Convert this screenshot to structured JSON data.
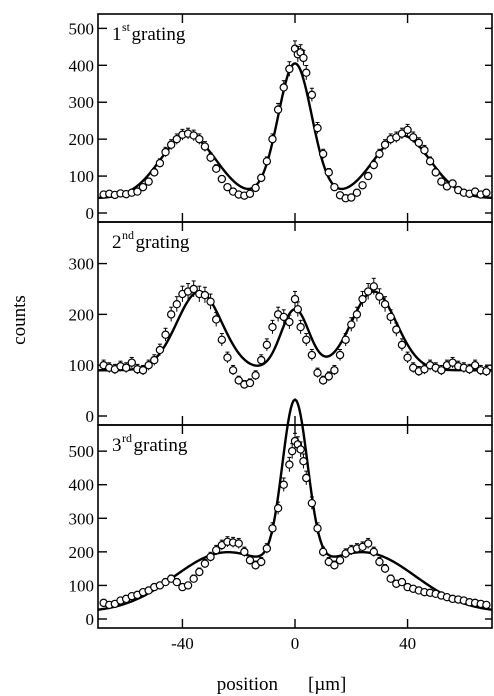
{
  "chart_data": {
    "type": "scatter",
    "xlabel": "position",
    "xunit": "[µm]",
    "ylabel": "counts",
    "xlim": [
      -70,
      70
    ],
    "xticks": [
      -40,
      0,
      40
    ],
    "panels": [
      {
        "title_main": "1",
        "title_sup": "st",
        "title_rest": " grating",
        "ylim": [
          0,
          520
        ],
        "yticks": [
          0,
          100,
          200,
          300,
          400,
          500
        ],
        "fit": {
          "baseline": 40,
          "peaks": [
            {
              "center": -38,
              "amplitude": 170,
              "width": 10
            },
            {
              "center": 0,
              "amplitude": 365,
              "width": 6
            },
            {
              "center": 38,
              "amplitude": 170,
              "width": 10
            }
          ]
        },
        "points": [
          {
            "x": -68,
            "y": 50
          },
          {
            "x": -66,
            "y": 52
          },
          {
            "x": -64,
            "y": 49
          },
          {
            "x": -62,
            "y": 53
          },
          {
            "x": -60,
            "y": 51
          },
          {
            "x": -58,
            "y": 55
          },
          {
            "x": -56,
            "y": 58
          },
          {
            "x": -54,
            "y": 70
          },
          {
            "x": -52,
            "y": 85
          },
          {
            "x": -50,
            "y": 110
          },
          {
            "x": -48,
            "y": 135
          },
          {
            "x": -46,
            "y": 165
          },
          {
            "x": -44,
            "y": 185
          },
          {
            "x": -42,
            "y": 200
          },
          {
            "x": -40,
            "y": 212
          },
          {
            "x": -38,
            "y": 215
          },
          {
            "x": -36,
            "y": 210
          },
          {
            "x": -34,
            "y": 200
          },
          {
            "x": -32,
            "y": 180
          },
          {
            "x": -30,
            "y": 150
          },
          {
            "x": -28,
            "y": 120
          },
          {
            "x": -26,
            "y": 92
          },
          {
            "x": -24,
            "y": 70
          },
          {
            "x": -22,
            "y": 58
          },
          {
            "x": -20,
            "y": 50
          },
          {
            "x": -18,
            "y": 47
          },
          {
            "x": -16,
            "y": 52
          },
          {
            "x": -14,
            "y": 68
          },
          {
            "x": -12,
            "y": 95
          },
          {
            "x": -10,
            "y": 140
          },
          {
            "x": -8,
            "y": 200
          },
          {
            "x": -6,
            "y": 280
          },
          {
            "x": -4,
            "y": 340
          },
          {
            "x": -2,
            "y": 390
          },
          {
            "x": 0,
            "y": 445
          },
          {
            "x": 1,
            "y": 430
          },
          {
            "x": 2,
            "y": 435
          },
          {
            "x": 3,
            "y": 420
          },
          {
            "x": 4,
            "y": 380
          },
          {
            "x": 6,
            "y": 320
          },
          {
            "x": 8,
            "y": 230
          },
          {
            "x": 10,
            "y": 160
          },
          {
            "x": 12,
            "y": 110
          },
          {
            "x": 14,
            "y": 70
          },
          {
            "x": 16,
            "y": 48
          },
          {
            "x": 18,
            "y": 40
          },
          {
            "x": 20,
            "y": 42
          },
          {
            "x": 22,
            "y": 55
          },
          {
            "x": 24,
            "y": 75
          },
          {
            "x": 26,
            "y": 100
          },
          {
            "x": 28,
            "y": 130
          },
          {
            "x": 30,
            "y": 160
          },
          {
            "x": 32,
            "y": 185
          },
          {
            "x": 34,
            "y": 200
          },
          {
            "x": 36,
            "y": 205
          },
          {
            "x": 38,
            "y": 215
          },
          {
            "x": 40,
            "y": 225
          },
          {
            "x": 42,
            "y": 205
          },
          {
            "x": 44,
            "y": 190
          },
          {
            "x": 46,
            "y": 170
          },
          {
            "x": 48,
            "y": 140
          },
          {
            "x": 50,
            "y": 110
          },
          {
            "x": 52,
            "y": 85
          },
          {
            "x": 54,
            "y": 72
          },
          {
            "x": 56,
            "y": 80
          },
          {
            "x": 58,
            "y": 62
          },
          {
            "x": 60,
            "y": 55
          },
          {
            "x": 62,
            "y": 52
          },
          {
            "x": 64,
            "y": 58
          },
          {
            "x": 66,
            "y": 50
          },
          {
            "x": 68,
            "y": 55
          }
        ]
      },
      {
        "title_main": "2",
        "title_sup": "nd",
        "title_rest": " grating",
        "ylim": [
          0,
          370
        ],
        "yticks": [
          0,
          100,
          200,
          300
        ],
        "fit": {
          "baseline": 90,
          "peaks": [
            {
              "center": -34,
              "amplitude": 155,
              "width": 8
            },
            {
              "center": 0,
              "amplitude": 120,
              "width": 5
            },
            {
              "center": 28,
              "amplitude": 155,
              "width": 8
            }
          ]
        },
        "points": [
          {
            "x": -68,
            "y": 100
          },
          {
            "x": -66,
            "y": 95
          },
          {
            "x": -64,
            "y": 92
          },
          {
            "x": -62,
            "y": 98
          },
          {
            "x": -60,
            "y": 95
          },
          {
            "x": -58,
            "y": 105
          },
          {
            "x": -56,
            "y": 92
          },
          {
            "x": -54,
            "y": 90
          },
          {
            "x": -52,
            "y": 100
          },
          {
            "x": -50,
            "y": 110
          },
          {
            "x": -48,
            "y": 130
          },
          {
            "x": -46,
            "y": 160
          },
          {
            "x": -44,
            "y": 200
          },
          {
            "x": -42,
            "y": 220
          },
          {
            "x": -40,
            "y": 240
          },
          {
            "x": -38,
            "y": 245
          },
          {
            "x": -36,
            "y": 250
          },
          {
            "x": -34,
            "y": 240
          },
          {
            "x": -32,
            "y": 238
          },
          {
            "x": -30,
            "y": 225
          },
          {
            "x": -28,
            "y": 190
          },
          {
            "x": -26,
            "y": 150
          },
          {
            "x": -24,
            "y": 115
          },
          {
            "x": -22,
            "y": 90
          },
          {
            "x": -20,
            "y": 70
          },
          {
            "x": -18,
            "y": 62
          },
          {
            "x": -16,
            "y": 65
          },
          {
            "x": -14,
            "y": 80
          },
          {
            "x": -12,
            "y": 110
          },
          {
            "x": -10,
            "y": 140
          },
          {
            "x": -8,
            "y": 175
          },
          {
            "x": -6,
            "y": 200
          },
          {
            "x": -4,
            "y": 195
          },
          {
            "x": -2,
            "y": 185
          },
          {
            "x": 0,
            "y": 230
          },
          {
            "x": 1,
            "y": 210
          },
          {
            "x": 2,
            "y": 175
          },
          {
            "x": 4,
            "y": 150
          },
          {
            "x": 6,
            "y": 120
          },
          {
            "x": 8,
            "y": 85
          },
          {
            "x": 10,
            "y": 70
          },
          {
            "x": 12,
            "y": 78
          },
          {
            "x": 14,
            "y": 90
          },
          {
            "x": 16,
            "y": 120
          },
          {
            "x": 18,
            "y": 150
          },
          {
            "x": 20,
            "y": 180
          },
          {
            "x": 22,
            "y": 200
          },
          {
            "x": 24,
            "y": 230
          },
          {
            "x": 26,
            "y": 245
          },
          {
            "x": 28,
            "y": 255
          },
          {
            "x": 30,
            "y": 235
          },
          {
            "x": 32,
            "y": 220
          },
          {
            "x": 34,
            "y": 195
          },
          {
            "x": 36,
            "y": 170
          },
          {
            "x": 38,
            "y": 140
          },
          {
            "x": 40,
            "y": 115
          },
          {
            "x": 42,
            "y": 95
          },
          {
            "x": 44,
            "y": 88
          },
          {
            "x": 46,
            "y": 92
          },
          {
            "x": 48,
            "y": 100
          },
          {
            "x": 50,
            "y": 95
          },
          {
            "x": 52,
            "y": 90
          },
          {
            "x": 54,
            "y": 100
          },
          {
            "x": 56,
            "y": 105
          },
          {
            "x": 58,
            "y": 98
          },
          {
            "x": 60,
            "y": 95
          },
          {
            "x": 62,
            "y": 92
          },
          {
            "x": 64,
            "y": 100
          },
          {
            "x": 66,
            "y": 90
          },
          {
            "x": 68,
            "y": 88
          }
        ]
      },
      {
        "title_main": "3",
        "title_sup": "rd",
        "title_rest": " grating",
        "ylim": [
          0,
          560
        ],
        "yticks": [
          0,
          100,
          200,
          300,
          400,
          500
        ],
        "fit": {
          "baseline": 20,
          "peaks": [
            {
              "center": -25,
              "amplitude": 175,
              "width": 18
            },
            {
              "center": 0,
              "amplitude": 500,
              "width": 4.5
            },
            {
              "center": 25,
              "amplitude": 175,
              "width": 18
            }
          ]
        },
        "points": [
          {
            "x": -68,
            "y": 48
          },
          {
            "x": -66,
            "y": 42
          },
          {
            "x": -64,
            "y": 45
          },
          {
            "x": -62,
            "y": 55
          },
          {
            "x": -60,
            "y": 60
          },
          {
            "x": -58,
            "y": 68
          },
          {
            "x": -56,
            "y": 72
          },
          {
            "x": -54,
            "y": 80
          },
          {
            "x": -52,
            "y": 85
          },
          {
            "x": -50,
            "y": 95
          },
          {
            "x": -48,
            "y": 100
          },
          {
            "x": -46,
            "y": 110
          },
          {
            "x": -44,
            "y": 120
          },
          {
            "x": -42,
            "y": 110
          },
          {
            "x": -40,
            "y": 95
          },
          {
            "x": -38,
            "y": 100
          },
          {
            "x": -36,
            "y": 120
          },
          {
            "x": -34,
            "y": 140
          },
          {
            "x": -32,
            "y": 165
          },
          {
            "x": -30,
            "y": 185
          },
          {
            "x": -28,
            "y": 205
          },
          {
            "x": -26,
            "y": 220
          },
          {
            "x": -24,
            "y": 230
          },
          {
            "x": -22,
            "y": 228
          },
          {
            "x": -20,
            "y": 225
          },
          {
            "x": -18,
            "y": 200
          },
          {
            "x": -16,
            "y": 175
          },
          {
            "x": -14,
            "y": 160
          },
          {
            "x": -12,
            "y": 170
          },
          {
            "x": -10,
            "y": 210
          },
          {
            "x": -8,
            "y": 270
          },
          {
            "x": -6,
            "y": 330
          },
          {
            "x": -4,
            "y": 400
          },
          {
            "x": -2,
            "y": 460
          },
          {
            "x": -1,
            "y": 500
          },
          {
            "x": 0,
            "y": 530
          },
          {
            "x": 1,
            "y": 520
          },
          {
            "x": 2,
            "y": 505
          },
          {
            "x": 3,
            "y": 470
          },
          {
            "x": 4,
            "y": 420
          },
          {
            "x": 6,
            "y": 345
          },
          {
            "x": 8,
            "y": 270
          },
          {
            "x": 10,
            "y": 200
          },
          {
            "x": 12,
            "y": 170
          },
          {
            "x": 14,
            "y": 160
          },
          {
            "x": 16,
            "y": 175
          },
          {
            "x": 18,
            "y": 195
          },
          {
            "x": 20,
            "y": 205
          },
          {
            "x": 22,
            "y": 210
          },
          {
            "x": 24,
            "y": 215
          },
          {
            "x": 26,
            "y": 225
          },
          {
            "x": 28,
            "y": 200
          },
          {
            "x": 30,
            "y": 170
          },
          {
            "x": 32,
            "y": 150
          },
          {
            "x": 34,
            "y": 120
          },
          {
            "x": 36,
            "y": 105
          },
          {
            "x": 38,
            "y": 110
          },
          {
            "x": 40,
            "y": 95
          },
          {
            "x": 42,
            "y": 90
          },
          {
            "x": 44,
            "y": 85
          },
          {
            "x": 46,
            "y": 80
          },
          {
            "x": 48,
            "y": 78
          },
          {
            "x": 50,
            "y": 75
          },
          {
            "x": 52,
            "y": 70
          },
          {
            "x": 54,
            "y": 65
          },
          {
            "x": 56,
            "y": 60
          },
          {
            "x": 58,
            "y": 58
          },
          {
            "x": 60,
            "y": 55
          },
          {
            "x": 62,
            "y": 50
          },
          {
            "x": 64,
            "y": 48
          },
          {
            "x": 66,
            "y": 45
          },
          {
            "x": 68,
            "y": 42
          }
        ]
      }
    ]
  }
}
